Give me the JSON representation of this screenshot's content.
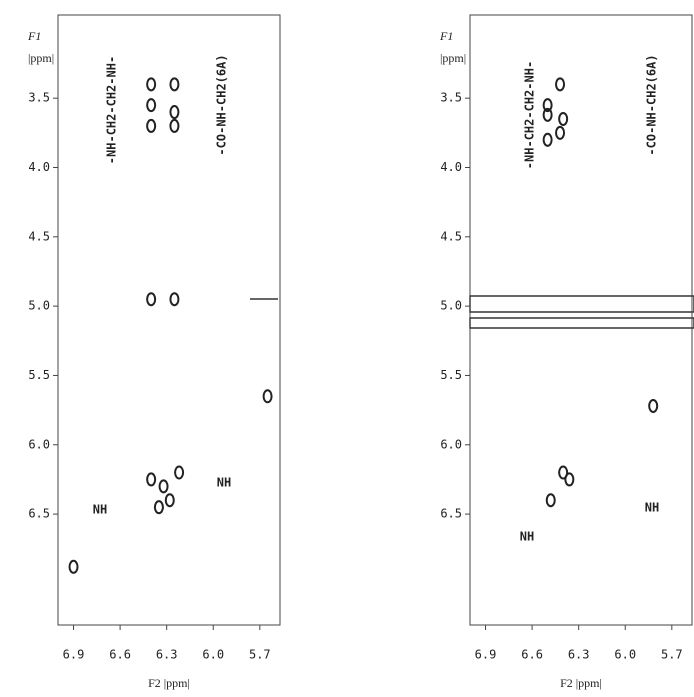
{
  "chart_data": [
    {
      "type": "contour",
      "y_label": "F1",
      "y_unit": "|ppm|",
      "x_label": "F2 |ppm|",
      "xlim": [
        7.0,
        5.57
      ],
      "ylim": [
        2.9,
        7.3
      ],
      "xticks": [
        6.9,
        6.6,
        6.3,
        {
          "value": 6,
          "label": "6.0"
        },
        5.7
      ],
      "yticks": [
        3.5,
        {
          "value": 4,
          "label": "4.0"
        },
        4.5,
        {
          "value": 5,
          "label": "5.0"
        },
        5.5,
        {
          "value": 6,
          "label": "6.0"
        },
        6.5
      ],
      "annotations": [
        "-NH-CH2-CH2-NH-",
        "-CO-NH-CH2(6A)",
        "NH",
        "NH"
      ],
      "peaks": {
        "x": [
          6.4,
          6.4,
          6.4,
          6.25,
          6.25,
          6.25,
          6.4,
          6.25,
          5.65,
          6.4,
          6.32,
          6.22,
          6.35,
          6.28,
          6.9
        ],
        "y": [
          3.4,
          3.55,
          3.7,
          3.4,
          3.6,
          3.7,
          4.95,
          4.95,
          5.65,
          6.25,
          6.3,
          6.2,
          6.45,
          6.4,
          6.88
        ]
      }
    },
    {
      "type": "contour",
      "y_label": "F1",
      "y_unit": "|ppm|",
      "x_label": "F2 |ppm|",
      "xlim": [
        7.0,
        5.57
      ],
      "ylim": [
        2.9,
        7.3
      ],
      "xticks": [
        6.9,
        6.6,
        6.3,
        {
          "value": 6,
          "label": "6.0"
        },
        5.7
      ],
      "yticks": [
        3.5,
        {
          "value": 4,
          "label": "4.0"
        },
        4.5,
        {
          "value": 5,
          "label": "5.0"
        },
        5.5,
        {
          "value": 6,
          "label": "6.0"
        },
        6.5
      ],
      "annotations": [
        "-NH-CH2-CH2-NH-",
        "-CO-NH-CH2(6A)",
        "NH",
        "NH"
      ],
      "peaks": {
        "x": [
          6.5,
          6.5,
          6.5,
          6.42,
          6.4,
          6.42,
          6.48,
          6.36,
          6.4,
          5.82
        ],
        "y": [
          3.55,
          3.62,
          3.8,
          3.4,
          3.65,
          3.75,
          6.4,
          6.25,
          6.2,
          5.72
        ]
      }
    }
  ]
}
